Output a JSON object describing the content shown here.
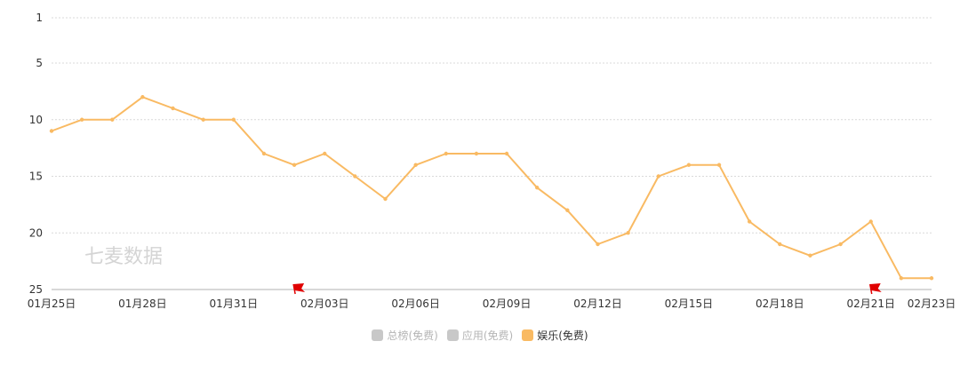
{
  "watermark": "七麦数据",
  "colors": {
    "series": "#F9BA63",
    "legend_off": "#C8C8C8",
    "grid": "#D9D9D9",
    "axis_line": "#CCCCCC",
    "tick_text": "#333333",
    "flag": "#E00000",
    "watermark": "#D4D4D4"
  },
  "legend": [
    {
      "label": "总榜(免费)",
      "active": false
    },
    {
      "label": "应用(免费)",
      "active": false
    },
    {
      "label": "娱乐(免费)",
      "active": true
    }
  ],
  "chart_data": {
    "type": "line",
    "title": "",
    "xlabel": "",
    "ylabel": "",
    "y_inverted": true,
    "ylim": [
      1,
      25
    ],
    "yticks": [
      1,
      5,
      10,
      15,
      20,
      25
    ],
    "grid": true,
    "legend_position": "bottom-center",
    "x": [
      "01月25日",
      "01月26日",
      "01月27日",
      "01月28日",
      "01月29日",
      "01月30日",
      "01月31日",
      "02月01日",
      "02月02日",
      "02月03日",
      "02月04日",
      "02月05日",
      "02月06日",
      "02月07日",
      "02月08日",
      "02月09日",
      "02月10日",
      "02月11日",
      "02月12日",
      "02月13日",
      "02月14日",
      "02月15日",
      "02月16日",
      "02月17日",
      "02月18日",
      "02月19日",
      "02月20日",
      "02月21日",
      "02月22日",
      "02月23日"
    ],
    "xtick_labels": [
      "01月25日",
      "01月28日",
      "01月31日",
      "02月03日",
      "02月06日",
      "02月09日",
      "02月12日",
      "02月15日",
      "02月18日",
      "02月21日",
      "02月23日"
    ],
    "series": [
      {
        "name": "娱乐(免费)",
        "values": [
          11,
          10,
          10,
          8,
          9,
          10,
          10,
          13,
          14,
          13,
          15,
          17,
          14,
          13,
          13,
          13,
          16,
          18,
          21,
          20,
          15,
          14,
          14,
          19,
          21,
          22,
          21,
          19,
          24,
          24
        ]
      }
    ],
    "annotations": [
      {
        "type": "flag",
        "x": "02月02日"
      },
      {
        "type": "flag",
        "x": "02月21日"
      }
    ]
  }
}
